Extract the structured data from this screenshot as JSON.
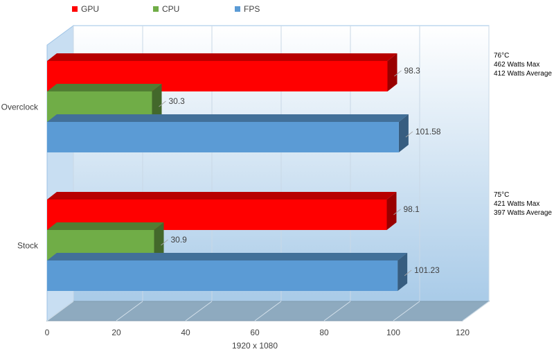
{
  "chart_data": {
    "type": "bar",
    "orientation": "horizontal",
    "three_d": true,
    "categories": [
      "Overclock",
      "Stock"
    ],
    "series": [
      {
        "name": "GPU",
        "color": "#ff0000",
        "values": [
          98.3,
          98.1
        ]
      },
      {
        "name": "CPU",
        "color": "#70ad47",
        "values": [
          30.3,
          30.9
        ]
      },
      {
        "name": "FPS",
        "color": "#5b9bd5",
        "values": [
          101.58,
          101.23
        ]
      }
    ],
    "xlabel": "1920 x 1080",
    "xlim": [
      0,
      120
    ],
    "xticks": [
      0,
      20,
      40,
      60,
      80,
      100,
      120
    ],
    "grid": true,
    "legend_position": "top-left",
    "data_labels": true,
    "annotations": [
      {
        "category": "Overclock",
        "lines": [
          "76°C",
          "462 Watts Max",
          "412 Watts Average"
        ]
      },
      {
        "category": "Stock",
        "lines": [
          "75°C",
          "421 Watts Max",
          "397 Watts Average"
        ]
      }
    ]
  }
}
